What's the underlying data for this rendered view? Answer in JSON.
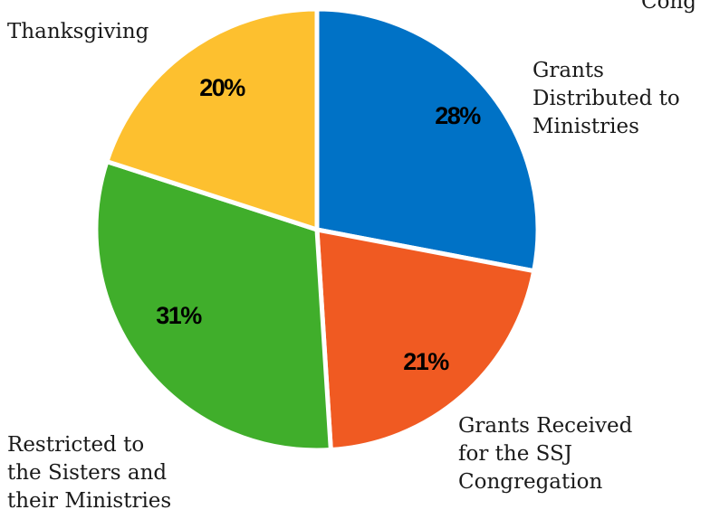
{
  "chart_data": {
    "type": "pie",
    "title": "",
    "clipped_label": "Cong",
    "slices": [
      {
        "label": "Grants Distributed to Ministries",
        "label_lines": [
          "Grants",
          "Distributed to",
          "Ministries"
        ],
        "value": 28,
        "value_label": "28%",
        "color": "#0072C6"
      },
      {
        "label": "Grants Received for the SSJ Congregation",
        "label_lines": [
          "Grants Received",
          "for the SSJ",
          "Congregation"
        ],
        "value": 21,
        "value_label": "21%",
        "color": "#F05A22"
      },
      {
        "label": "Restricted to the Sisters and their Ministries",
        "label_lines": [
          "Restricted to",
          "the Sisters and",
          "their Ministries"
        ],
        "value": 31,
        "value_label": "31%",
        "color": "#40AE2B"
      },
      {
        "label": "Thanksgiving",
        "label_lines": [
          "Thanksgiving"
        ],
        "value": 20,
        "value_label": "20%",
        "color": "#FDC02F"
      }
    ]
  }
}
